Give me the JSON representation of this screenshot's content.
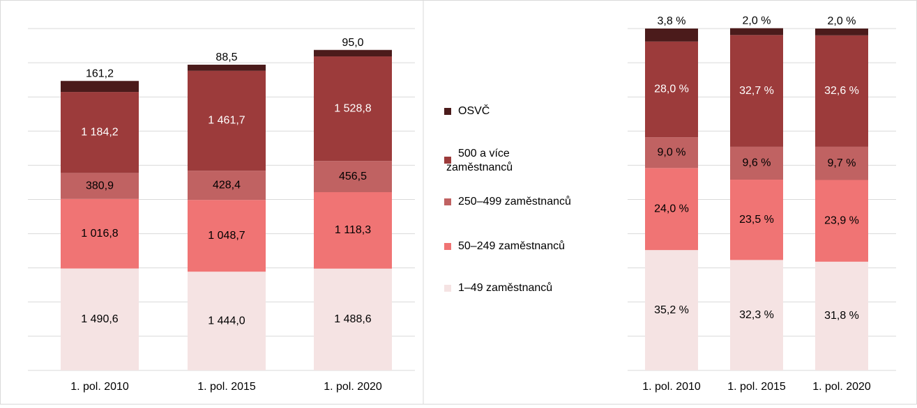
{
  "chart_data": [
    {
      "type": "stacked-bar",
      "categories": [
        "1. pol. 2010",
        "1. pol. 2015",
        "1. pol. 2020"
      ],
      "ylim": [
        0,
        5000
      ],
      "yticks": [
        0,
        500,
        1000,
        1500,
        2000,
        2500,
        3000,
        3500,
        4000,
        4500,
        5000
      ],
      "grid": true,
      "series": [
        {
          "name": "1–49 zaměstnanců",
          "color": "#f5e3e3",
          "values": [
            1490.6,
            1444.0,
            1488.6
          ],
          "value_labels": [
            "1 490,6",
            "1 444,0",
            "1 488,6"
          ]
        },
        {
          "name": "50–249 zaměstnanců",
          "color": "#f07474",
          "values": [
            1016.8,
            1048.7,
            1118.3
          ],
          "value_labels": [
            "1 016,8",
            "1 048,7",
            "1 118,3"
          ]
        },
        {
          "name": "250–499 zaměstnanců",
          "color": "#c06262",
          "values": [
            380.9,
            428.4,
            456.5
          ],
          "value_labels": [
            "380,9",
            "428,4",
            "456,5"
          ]
        },
        {
          "name": "500 a více zaměstnanců",
          "color": "#9c3b3b",
          "values": [
            1184.2,
            1461.7,
            1528.8
          ],
          "value_labels": [
            "1 184,2",
            "1 461,7",
            "1 528,8"
          ]
        },
        {
          "name": "OSVČ",
          "color": "#4b1b1b",
          "values": [
            161.2,
            88.5,
            95.0
          ],
          "value_labels": [
            "161,2",
            "88,5",
            "95,0"
          ]
        }
      ]
    },
    {
      "type": "stacked-bar",
      "categories": [
        "1. pol. 2010",
        "1. pol. 2015",
        "1. pol. 2020"
      ],
      "ylim": [
        0,
        100
      ],
      "yticks": [
        0,
        10,
        20,
        30,
        40,
        50,
        60,
        70,
        80,
        90,
        100
      ],
      "grid": true,
      "series": [
        {
          "color": "#f5e3e3",
          "values": [
            35.2,
            32.3,
            31.8
          ],
          "value_labels": [
            "35,2 %",
            "32,3 %",
            "31,8 %"
          ]
        },
        {
          "color": "#f07474",
          "values": [
            24.0,
            23.5,
            23.9
          ],
          "value_labels": [
            "24,0 %",
            "23,5 %",
            "23,9 %"
          ]
        },
        {
          "color": "#c06262",
          "values": [
            9.0,
            9.6,
            9.7
          ],
          "value_labels": [
            "9,0 %",
            "9,6 %",
            "9,7 %"
          ]
        },
        {
          "color": "#9c3b3b",
          "values": [
            28.0,
            32.7,
            32.6
          ],
          "value_labels": [
            "28,0 %",
            "32,7 %",
            "32,6 %"
          ]
        },
        {
          "color": "#4b1b1b",
          "values": [
            3.8,
            2.0,
            2.0
          ],
          "value_labels": [
            "3,8 %",
            "2,0 %",
            "2,0 %"
          ]
        }
      ]
    }
  ]
}
